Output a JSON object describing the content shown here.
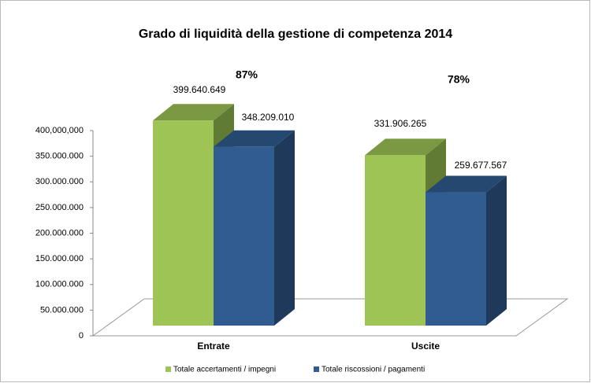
{
  "chart_data": {
    "type": "bar3d",
    "title": "Grado di liquidità della gestione di competenza 2014",
    "categories": [
      "Entrate",
      "Uscite"
    ],
    "series": [
      {
        "name": "Totale accertamenti / impegni",
        "color": "#9dc454",
        "values": [
          399640649,
          331906265
        ],
        "value_labels": [
          "399.640.649",
          "331.906.265"
        ]
      },
      {
        "name": "Totale riscossioni / pagamenti",
        "color": "#305c91",
        "values": [
          348209010,
          259677567
        ],
        "value_labels": [
          "348.209.010",
          "259.677.567"
        ]
      }
    ],
    "annotations": [
      "87%",
      "78%"
    ],
    "ylim": [
      0,
      400000000
    ],
    "yticks": [
      0,
      {
        "value": 50000000,
        "label": "50.000.000"
      },
      {
        "value": 100000000,
        "label": "100.000.000"
      },
      {
        "value": 150000000,
        "label": "150.000.000"
      },
      {
        "value": 200000000,
        "label": "200.000.000"
      },
      {
        "value": 250000000,
        "label": "250.000.000"
      },
      {
        "value": 300000000,
        "label": "300.000.000"
      },
      {
        "value": 350000000,
        "label": "350.000.000"
      },
      {
        "value": 400000000,
        "label": "400,000,000"
      }
    ],
    "legend": "bottom"
  }
}
